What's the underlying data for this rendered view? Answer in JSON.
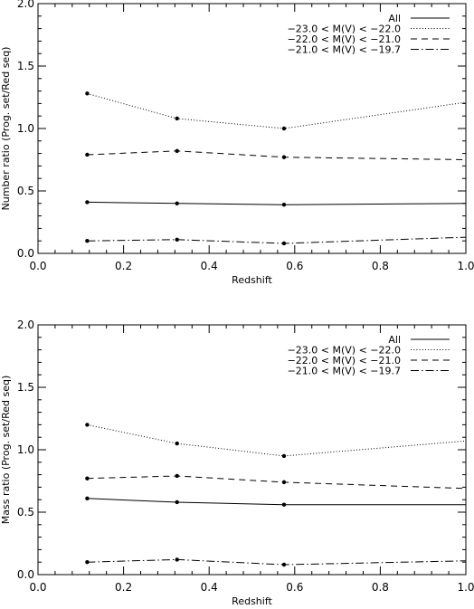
{
  "chart_data": [
    {
      "type": "line",
      "xlabel": "Redshift",
      "ylabel": "Number ratio (Prog. set/Red seq)",
      "xlim": [
        0.0,
        1.0
      ],
      "ylim": [
        0.0,
        2.0
      ],
      "xticks": [
        "0.0",
        "0.2",
        "0.4",
        "0.6",
        "0.8",
        "1.0"
      ],
      "yticks": [
        "0.0",
        "0.5",
        "1.0",
        "1.5",
        "2.0"
      ],
      "legend_position": "top-right",
      "grid": false,
      "series": [
        {
          "name": "All",
          "style": "solid",
          "x": [
            0.115,
            0.325,
            0.575,
            1.0
          ],
          "y": [
            0.41,
            0.4,
            0.39,
            0.4
          ],
          "markers": 3
        },
        {
          "name": "−23.0 < M(V) < −22.0",
          "style": "dotted",
          "x": [
            0.115,
            0.325,
            0.575,
            1.0
          ],
          "y": [
            1.28,
            1.08,
            1.0,
            1.21
          ],
          "markers": 3
        },
        {
          "name": "−22.0 < M(V) < −21.0",
          "style": "dashed",
          "x": [
            0.115,
            0.325,
            0.575,
            1.0
          ],
          "y": [
            0.79,
            0.82,
            0.77,
            0.75
          ],
          "markers": 3
        },
        {
          "name": "−21.0 < M(V) < −19.7",
          "style": "dashdot",
          "x": [
            0.115,
            0.325,
            0.575,
            1.0
          ],
          "y": [
            0.1,
            0.11,
            0.08,
            0.13
          ],
          "markers": 3
        }
      ]
    },
    {
      "type": "line",
      "xlabel": "Redshift",
      "ylabel": "Mass ratio (Prog. set/Red seq)",
      "xlim": [
        0.0,
        1.0
      ],
      "ylim": [
        0.0,
        2.0
      ],
      "xticks": [
        "0.0",
        "0.2",
        "0.4",
        "0.6",
        "0.8",
        "1.0"
      ],
      "yticks": [
        "0.0",
        "0.5",
        "1.0",
        "1.5",
        "2.0"
      ],
      "legend_position": "top-right",
      "grid": false,
      "series": [
        {
          "name": "All",
          "style": "solid",
          "x": [
            0.115,
            0.325,
            0.575,
            1.0
          ],
          "y": [
            0.61,
            0.58,
            0.56,
            0.56
          ],
          "markers": 3
        },
        {
          "name": "−23.0 < M(V) < −22.0",
          "style": "dotted",
          "x": [
            0.115,
            0.325,
            0.575,
            1.0
          ],
          "y": [
            1.2,
            1.05,
            0.95,
            1.07
          ],
          "markers": 3
        },
        {
          "name": "−22.0 < M(V) < −21.0",
          "style": "dashed",
          "x": [
            0.115,
            0.325,
            0.575,
            1.0
          ],
          "y": [
            0.77,
            0.79,
            0.74,
            0.69
          ],
          "markers": 3
        },
        {
          "name": "−21.0 < M(V) < −19.7",
          "style": "dashdot",
          "x": [
            0.115,
            0.325,
            0.575,
            1.0
          ],
          "y": [
            0.1,
            0.12,
            0.08,
            0.11
          ],
          "markers": 3
        }
      ]
    }
  ]
}
